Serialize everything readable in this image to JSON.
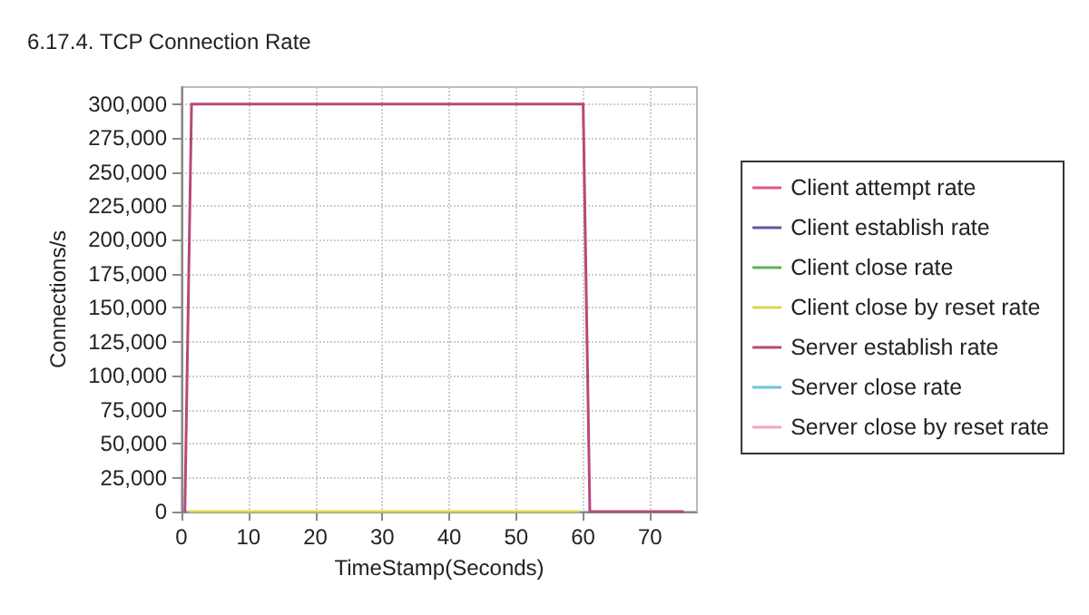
{
  "chart_data": {
    "type": "line",
    "title": "6.17.4. TCP Connection Rate",
    "xlabel": "TimeStamp(Seconds)",
    "ylabel": "Connections/s",
    "x": [
      0.5,
      1.5,
      60,
      61,
      75
    ],
    "series": [
      {
        "name": "Client attempt rate",
        "color": "#e05a7a",
        "values": [
          null,
          null,
          null,
          null,
          null
        ]
      },
      {
        "name": "Client establish rate",
        "color": "#5a5aa8",
        "values": [
          null,
          null,
          null,
          null,
          null
        ]
      },
      {
        "name": "Client close rate",
        "color": "#5ab45a",
        "values": [
          null,
          null,
          null,
          null,
          null
        ]
      },
      {
        "name": "Client close by reset rate",
        "color": "#d8d850",
        "x": [
          1,
          59.5
        ],
        "values": [
          0,
          0
        ]
      },
      {
        "name": "Server establish rate",
        "color": "#b8487a",
        "values": [
          0,
          300000,
          300000,
          0,
          0
        ]
      },
      {
        "name": "Server close rate",
        "color": "#6cc4dc",
        "values": [
          null,
          null,
          null,
          null,
          null
        ]
      },
      {
        "name": "Server close by reset rate",
        "color": "#f0a8b8",
        "values": [
          null,
          null,
          null,
          null,
          null
        ]
      }
    ],
    "xlim": [
      0,
      77
    ],
    "xticks": [
      0,
      10,
      20,
      30,
      40,
      50,
      60,
      70
    ],
    "ylim": [
      0,
      312500
    ],
    "yticks": [
      0,
      {
        "value": 25000,
        "label": "25,000"
      },
      {
        "value": 50000,
        "label": "50,000"
      },
      {
        "value": 75000,
        "label": "75,000"
      },
      {
        "value": 100000,
        "label": "100,000"
      },
      {
        "value": 125000,
        "label": "125,000"
      },
      {
        "value": 150000,
        "label": "150,000"
      },
      {
        "value": 175000,
        "label": "175,000"
      },
      {
        "value": 200000,
        "label": "200,000"
      },
      {
        "value": 225000,
        "label": "225,000"
      },
      {
        "value": 250000,
        "label": "250,000"
      },
      {
        "value": 275000,
        "label": "275,000"
      },
      {
        "value": 300000,
        "label": "300,000"
      }
    ],
    "grid": true,
    "legend": "right",
    "marker": "none",
    "line_style": "solid"
  }
}
